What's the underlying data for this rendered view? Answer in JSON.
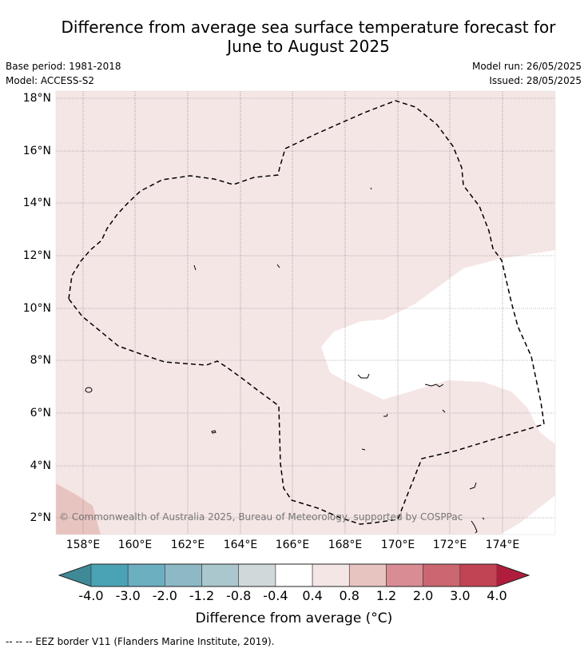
{
  "title_line1": "Difference from average sea surface temperature forecast for",
  "title_line2": "June to August 2025",
  "meta": {
    "base_period": "Base period: 1981-2018",
    "model": "Model: ACCESS-S2",
    "model_run": "Model run: 26/05/2025",
    "issued": "Issued: 28/05/2025"
  },
  "map": {
    "lat_labels": [
      "18°N",
      "16°N",
      "14°N",
      "12°N",
      "10°N",
      "8°N",
      "6°N",
      "4°N",
      "2°N"
    ],
    "lat_values": [
      18,
      16,
      14,
      12,
      10,
      8,
      6,
      4,
      2
    ],
    "lon_labels": [
      "158°E",
      "160°E",
      "162°E",
      "164°E",
      "166°E",
      "168°E",
      "170°E",
      "172°E",
      "174°E"
    ],
    "lon_values": [
      158,
      160,
      162,
      164,
      166,
      168,
      170,
      172,
      174
    ],
    "copyright": "© Commonwealth of Australia 2025, Bureau of Meteorology, supported by COSPPac"
  },
  "colorbar": {
    "ticks": [
      "-4.0",
      "-3.0",
      "-2.0",
      "-1.2",
      "-0.8",
      "-0.4",
      "0.4",
      "0.8",
      "1.2",
      "2.0",
      "3.0",
      "4.0"
    ],
    "colors": [
      "#3f8a96",
      "#4aa3b5",
      "#6bafc0",
      "#8db9c6",
      "#a9c7cd",
      "#d1d8da",
      "#ffffff",
      "#f5e6e6",
      "#e8c4c0",
      "#d98c94",
      "#cc6670",
      "#c04452",
      "#b01c3c"
    ],
    "label": "Difference from average (°C)"
  },
  "footer": "-- -- -- EEZ border V11 (Flanders Marine Institute, 2019)."
}
